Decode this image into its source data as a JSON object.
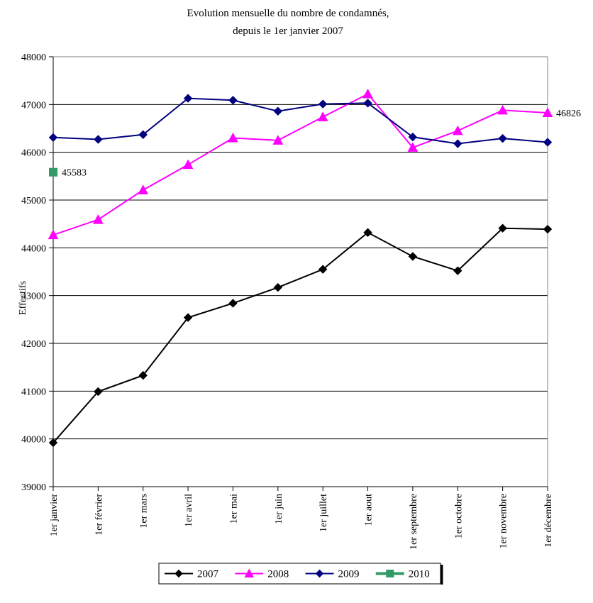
{
  "chart_data": {
    "type": "line",
    "title_line1": "Evolution mensuelle du nombre de condamnés,",
    "title_line2": "depuis le 1er janvier 2007",
    "ylabel": "Effectifs",
    "xlabel": "",
    "ylim": [
      39000,
      48000
    ],
    "yticks": [
      "39000",
      "40000",
      "41000",
      "42000",
      "43000",
      "44000",
      "45000",
      "46000",
      "47000",
      "48000"
    ],
    "categories": [
      "1er janvier",
      "1er février",
      "1er mars",
      "1er avril",
      "1er mai",
      "1er juin",
      "1er juillet",
      "1er aout",
      "1er septembre",
      "1er octobre",
      "1er novembre",
      "1er décembre"
    ],
    "grid": true,
    "legend_position": "bottom",
    "series": [
      {
        "name": "2007",
        "color": "#000000",
        "marker": "diamond",
        "values": [
          39920,
          40990,
          41330,
          42540,
          42840,
          43170,
          43550,
          44320,
          43820,
          43520,
          44410,
          44390
        ]
      },
      {
        "name": "2008",
        "color": "#ff00ff",
        "marker": "triangle",
        "values": [
          44270,
          44590,
          45210,
          45740,
          46300,
          46250,
          46740,
          47220,
          46100,
          46450,
          46880,
          46826
        ]
      },
      {
        "name": "2009",
        "color": "#000080",
        "marker": "diamond",
        "values": [
          46310,
          46270,
          46370,
          47130,
          47090,
          46860,
          47010,
          47030,
          46320,
          46180,
          46290,
          46210
        ]
      },
      {
        "name": "2010",
        "color": "#339966",
        "marker": "square",
        "values": [
          45583,
          null,
          null,
          null,
          null,
          null,
          null,
          null,
          null,
          null,
          null,
          null
        ]
      }
    ],
    "annotations": [
      {
        "text": "45583",
        "series": 3,
        "index": 0
      },
      {
        "text": "46826",
        "series": 1,
        "index": 11
      }
    ]
  }
}
